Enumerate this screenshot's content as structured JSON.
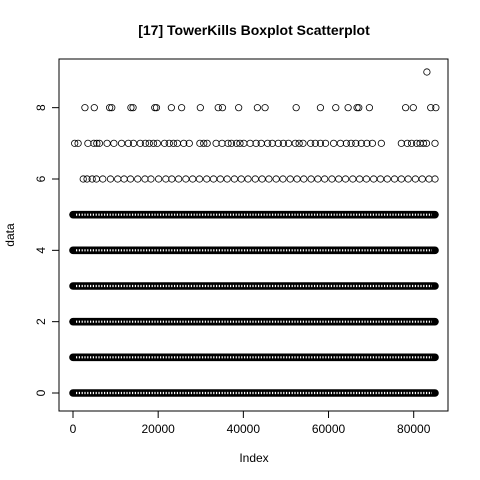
{
  "chart_data": {
    "type": "scatter",
    "title": "[17] TowerKills Boxplot Scatterplot",
    "xlabel": "Index",
    "ylabel": "data",
    "xlim": [
      0,
      85000
    ],
    "ylim": [
      0,
      9
    ],
    "x_ticks": [
      0,
      20000,
      40000,
      60000,
      80000
    ],
    "x_tick_labels": [
      "0",
      "20000",
      "40000",
      "60000",
      "80000"
    ],
    "y_ticks": [
      0,
      2,
      4,
      6,
      8
    ],
    "y_tick_labels": [
      "0",
      "2",
      "4",
      "6",
      "8"
    ],
    "marker": "open-circle",
    "grid": false,
    "legend": "none",
    "dense_bands": [
      {
        "y": 0,
        "x_range": [
          1,
          85000
        ]
      },
      {
        "y": 1,
        "x_range": [
          1,
          85000
        ]
      },
      {
        "y": 2,
        "x_range": [
          1,
          85000
        ]
      },
      {
        "y": 3,
        "x_range": [
          1,
          85000
        ]
      },
      {
        "y": 4,
        "x_range": [
          1,
          85000
        ]
      },
      {
        "y": 5,
        "x_range": [
          1,
          85000
        ]
      }
    ],
    "points": [
      {
        "x": 2400,
        "y": 6
      },
      {
        "x": 3300,
        "y": 6
      },
      {
        "x": 4500,
        "y": 6
      },
      {
        "x": 5500,
        "y": 6
      },
      {
        "x": 7000,
        "y": 6
      },
      {
        "x": 8800,
        "y": 6
      },
      {
        "x": 10500,
        "y": 6
      },
      {
        "x": 12000,
        "y": 6
      },
      {
        "x": 13500,
        "y": 6
      },
      {
        "x": 15200,
        "y": 6
      },
      {
        "x": 16900,
        "y": 6
      },
      {
        "x": 18300,
        "y": 6
      },
      {
        "x": 20100,
        "y": 6
      },
      {
        "x": 21800,
        "y": 6
      },
      {
        "x": 23200,
        "y": 6
      },
      {
        "x": 24800,
        "y": 6
      },
      {
        "x": 26500,
        "y": 6
      },
      {
        "x": 28100,
        "y": 6
      },
      {
        "x": 29700,
        "y": 6
      },
      {
        "x": 31400,
        "y": 6
      },
      {
        "x": 33000,
        "y": 6
      },
      {
        "x": 34600,
        "y": 6
      },
      {
        "x": 36200,
        "y": 6
      },
      {
        "x": 37900,
        "y": 6
      },
      {
        "x": 39500,
        "y": 6
      },
      {
        "x": 41100,
        "y": 6
      },
      {
        "x": 42800,
        "y": 6
      },
      {
        "x": 44400,
        "y": 6
      },
      {
        "x": 46000,
        "y": 6
      },
      {
        "x": 47700,
        "y": 6
      },
      {
        "x": 49300,
        "y": 6
      },
      {
        "x": 51000,
        "y": 6
      },
      {
        "x": 52600,
        "y": 6
      },
      {
        "x": 54200,
        "y": 6
      },
      {
        "x": 55900,
        "y": 6
      },
      {
        "x": 57500,
        "y": 6
      },
      {
        "x": 59100,
        "y": 6
      },
      {
        "x": 60800,
        "y": 6
      },
      {
        "x": 62400,
        "y": 6
      },
      {
        "x": 64000,
        "y": 6
      },
      {
        "x": 65700,
        "y": 6
      },
      {
        "x": 67300,
        "y": 6
      },
      {
        "x": 68900,
        "y": 6
      },
      {
        "x": 70600,
        "y": 6
      },
      {
        "x": 72200,
        "y": 6
      },
      {
        "x": 73800,
        "y": 6
      },
      {
        "x": 75500,
        "y": 6
      },
      {
        "x": 77100,
        "y": 6
      },
      {
        "x": 78700,
        "y": 6
      },
      {
        "x": 80400,
        "y": 6
      },
      {
        "x": 82000,
        "y": 6
      },
      {
        "x": 83600,
        "y": 6
      },
      {
        "x": 85000,
        "y": 6
      },
      {
        "x": 400,
        "y": 7
      },
      {
        "x": 1200,
        "y": 7
      },
      {
        "x": 3500,
        "y": 7
      },
      {
        "x": 4900,
        "y": 7
      },
      {
        "x": 5600,
        "y": 7
      },
      {
        "x": 6200,
        "y": 7
      },
      {
        "x": 8000,
        "y": 7
      },
      {
        "x": 9600,
        "y": 7
      },
      {
        "x": 11400,
        "y": 7
      },
      {
        "x": 13000,
        "y": 7
      },
      {
        "x": 14200,
        "y": 7
      },
      {
        "x": 15800,
        "y": 7
      },
      {
        "x": 17000,
        "y": 7
      },
      {
        "x": 17900,
        "y": 7
      },
      {
        "x": 18900,
        "y": 7
      },
      {
        "x": 19800,
        "y": 7
      },
      {
        "x": 21500,
        "y": 7
      },
      {
        "x": 22600,
        "y": 7
      },
      {
        "x": 23600,
        "y": 7
      },
      {
        "x": 24500,
        "y": 7
      },
      {
        "x": 26000,
        "y": 7
      },
      {
        "x": 27300,
        "y": 7
      },
      {
        "x": 29800,
        "y": 7
      },
      {
        "x": 30700,
        "y": 7
      },
      {
        "x": 31500,
        "y": 7
      },
      {
        "x": 33600,
        "y": 7
      },
      {
        "x": 35000,
        "y": 7
      },
      {
        "x": 36400,
        "y": 7
      },
      {
        "x": 37200,
        "y": 7
      },
      {
        "x": 38400,
        "y": 7
      },
      {
        "x": 39200,
        "y": 7
      },
      {
        "x": 40100,
        "y": 7
      },
      {
        "x": 41600,
        "y": 7
      },
      {
        "x": 43000,
        "y": 7
      },
      {
        "x": 44200,
        "y": 7
      },
      {
        "x": 45700,
        "y": 7
      },
      {
        "x": 46800,
        "y": 7
      },
      {
        "x": 48200,
        "y": 7
      },
      {
        "x": 49400,
        "y": 7
      },
      {
        "x": 50600,
        "y": 7
      },
      {
        "x": 52200,
        "y": 7
      },
      {
        "x": 53100,
        "y": 7
      },
      {
        "x": 54000,
        "y": 7
      },
      {
        "x": 55800,
        "y": 7
      },
      {
        "x": 56900,
        "y": 7
      },
      {
        "x": 58100,
        "y": 7
      },
      {
        "x": 59300,
        "y": 7
      },
      {
        "x": 61200,
        "y": 7
      },
      {
        "x": 62800,
        "y": 7
      },
      {
        "x": 64200,
        "y": 7
      },
      {
        "x": 65300,
        "y": 7
      },
      {
        "x": 66400,
        "y": 7
      },
      {
        "x": 67700,
        "y": 7
      },
      {
        "x": 69000,
        "y": 7
      },
      {
        "x": 70300,
        "y": 7
      },
      {
        "x": 72400,
        "y": 7
      },
      {
        "x": 77100,
        "y": 7
      },
      {
        "x": 78500,
        "y": 7
      },
      {
        "x": 79500,
        "y": 7
      },
      {
        "x": 80700,
        "y": 7
      },
      {
        "x": 81500,
        "y": 7
      },
      {
        "x": 82300,
        "y": 7
      },
      {
        "x": 83000,
        "y": 7
      },
      {
        "x": 85000,
        "y": 7
      },
      {
        "x": 2800,
        "y": 8
      },
      {
        "x": 5000,
        "y": 8
      },
      {
        "x": 8600,
        "y": 8
      },
      {
        "x": 9100,
        "y": 8
      },
      {
        "x": 13600,
        "y": 8
      },
      {
        "x": 14100,
        "y": 8
      },
      {
        "x": 19200,
        "y": 8
      },
      {
        "x": 19600,
        "y": 8
      },
      {
        "x": 23100,
        "y": 8
      },
      {
        "x": 25500,
        "y": 8
      },
      {
        "x": 29900,
        "y": 8
      },
      {
        "x": 34100,
        "y": 8
      },
      {
        "x": 35100,
        "y": 8
      },
      {
        "x": 38900,
        "y": 8
      },
      {
        "x": 43300,
        "y": 8
      },
      {
        "x": 45100,
        "y": 8
      },
      {
        "x": 52400,
        "y": 8
      },
      {
        "x": 58100,
        "y": 8
      },
      {
        "x": 61700,
        "y": 8
      },
      {
        "x": 64600,
        "y": 8
      },
      {
        "x": 66700,
        "y": 8
      },
      {
        "x": 67100,
        "y": 8
      },
      {
        "x": 69600,
        "y": 8
      },
      {
        "x": 78100,
        "y": 8
      },
      {
        "x": 79900,
        "y": 8
      },
      {
        "x": 84000,
        "y": 8
      },
      {
        "x": 85200,
        "y": 8
      },
      {
        "x": 83100,
        "y": 9
      }
    ]
  }
}
